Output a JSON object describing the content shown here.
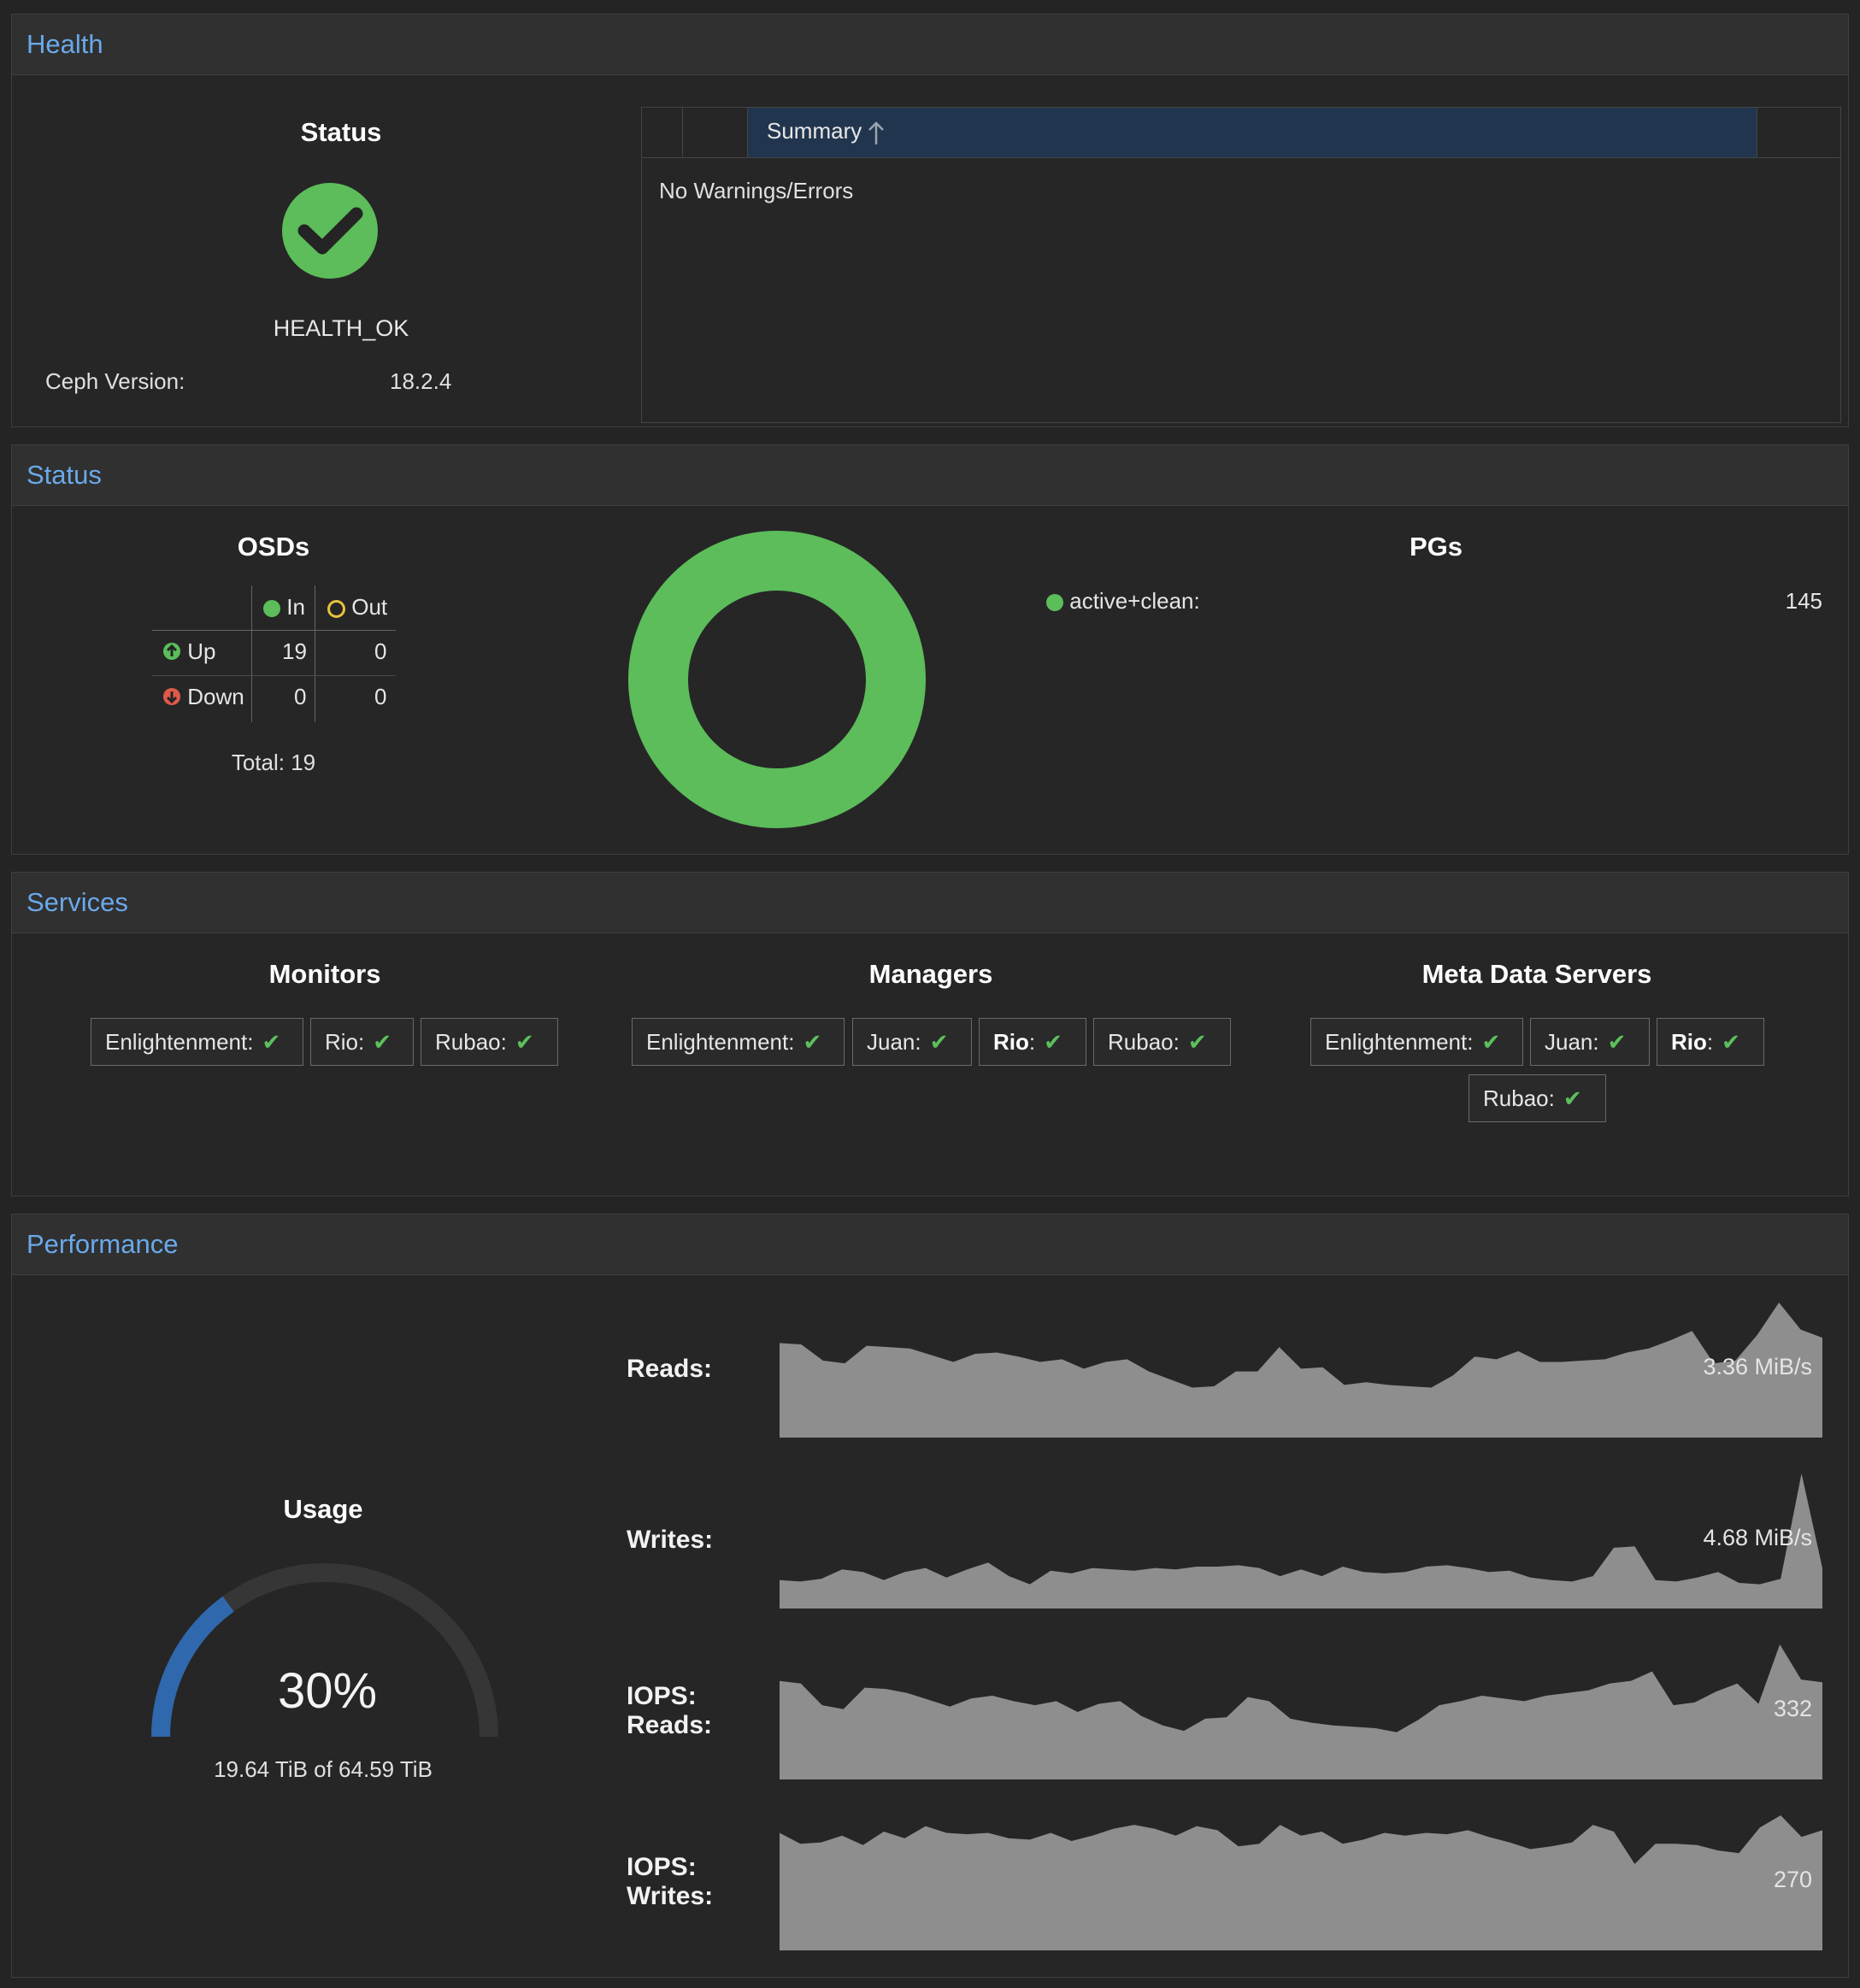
{
  "health": {
    "title": "Health",
    "status_heading": "Status",
    "status_text": "HEALTH_OK",
    "version_label": "Ceph Version:",
    "version_value": "18.2.4",
    "summary_header": "Summary",
    "summary_sort_icon": "arrow-up-icon",
    "summary_body": "No Warnings/Errors"
  },
  "status": {
    "title": "Status",
    "osds": {
      "heading": "OSDs",
      "col_in": "In",
      "col_out": "Out",
      "row_up": "Up",
      "row_down": "Down",
      "up_in": "19",
      "up_out": "0",
      "down_in": "0",
      "down_out": "0",
      "total": "Total: 19"
    },
    "pgs": {
      "heading": "PGs",
      "items": [
        {
          "label": "active+clean:",
          "value": "145",
          "color": "#5cbd5a"
        }
      ]
    }
  },
  "services": {
    "title": "Services",
    "monitors": {
      "heading": "Monitors",
      "items": [
        "Enlightenment:",
        "Rio:",
        "Rubao:"
      ]
    },
    "managers": {
      "heading": "Managers",
      "items": [
        "Enlightenment:",
        "Juan:",
        "Rio",
        "Rubao:"
      ],
      "rio_colon": ":"
    },
    "mds": {
      "heading": "Meta Data Servers",
      "items": [
        "Enlightenment:",
        "Juan:",
        "Rio",
        "Rubao:"
      ],
      "rio_colon": ":"
    }
  },
  "performance": {
    "title": "Performance",
    "usage": {
      "heading": "Usage",
      "percent_text": "30%",
      "percent": 30,
      "detail": "19.64 TiB of 64.59 TiB",
      "color": "#2f68ad"
    },
    "reads_label": "Reads:",
    "reads_value": "3.36 MiB/s",
    "writes_label": "Writes:",
    "writes_value": "4.68 MiB/s",
    "iops_reads_label_1": "IOPS:",
    "iops_reads_label_2": "Reads:",
    "iops_reads_value": "332",
    "iops_writes_label_1": "IOPS:",
    "iops_writes_label_2": "Writes:",
    "iops_writes_value": "270"
  },
  "chart_data": [
    {
      "type": "pie",
      "categories": [
        "active+clean"
      ],
      "values": [
        145
      ],
      "colors": [
        "#5cbd5a"
      ],
      "title": ""
    },
    {
      "type": "area",
      "series": [
        {
          "values": [
            0.7,
            0.69,
            0.57,
            0.55,
            0.68,
            0.67,
            0.66,
            0.61,
            0.56,
            0.62,
            0.63,
            0.6,
            0.56,
            0.58,
            0.51,
            0.56,
            0.58,
            0.49,
            0.43,
            0.37,
            0.38,
            0.49,
            0.49,
            0.67,
            0.51,
            0.52,
            0.39,
            0.41,
            0.39,
            0.38,
            0.37,
            0.46,
            0.6,
            0.58,
            0.64,
            0.56,
            0.56,
            0.57,
            0.58,
            0.63,
            0.66,
            0.72,
            0.79,
            0.55,
            0.57,
            0.76,
            1.0,
            0.8,
            0.74
          ]
        }
      ],
      "ylim": [
        0,
        1
      ]
    },
    {
      "type": "area",
      "series": [
        {
          "values": [
            0.21,
            0.2,
            0.22,
            0.29,
            0.27,
            0.21,
            0.27,
            0.3,
            0.23,
            0.29,
            0.34,
            0.24,
            0.18,
            0.28,
            0.26,
            0.3,
            0.29,
            0.28,
            0.3,
            0.29,
            0.31,
            0.31,
            0.32,
            0.3,
            0.24,
            0.29,
            0.24,
            0.31,
            0.27,
            0.26,
            0.27,
            0.31,
            0.32,
            0.3,
            0.27,
            0.28,
            0.23,
            0.21,
            0.2,
            0.24,
            0.45,
            0.46,
            0.21,
            0.2,
            0.23,
            0.27,
            0.19,
            0.18,
            0.22,
            1.0,
            0.3
          ]
        }
      ],
      "ylim": [
        0,
        1
      ]
    },
    {
      "type": "area",
      "series": [
        {
          "values": [
            0.73,
            0.71,
            0.55,
            0.52,
            0.68,
            0.67,
            0.64,
            0.59,
            0.54,
            0.6,
            0.62,
            0.58,
            0.55,
            0.58,
            0.5,
            0.56,
            0.58,
            0.47,
            0.4,
            0.36,
            0.45,
            0.46,
            0.61,
            0.58,
            0.45,
            0.42,
            0.4,
            0.39,
            0.38,
            0.35,
            0.44,
            0.55,
            0.58,
            0.62,
            0.6,
            0.58,
            0.62,
            0.64,
            0.66,
            0.71,
            0.73,
            0.8,
            0.55,
            0.57,
            0.65,
            0.71,
            0.56,
            1.0,
            0.74,
            0.72
          ]
        }
      ],
      "ylim": [
        0,
        1
      ]
    },
    {
      "type": "area",
      "series": [
        {
          "values": [
            0.87,
            0.79,
            0.8,
            0.85,
            0.78,
            0.88,
            0.83,
            0.92,
            0.87,
            0.86,
            0.87,
            0.83,
            0.82,
            0.87,
            0.81,
            0.85,
            0.9,
            0.93,
            0.9,
            0.85,
            0.92,
            0.89,
            0.77,
            0.79,
            0.93,
            0.85,
            0.88,
            0.79,
            0.82,
            0.87,
            0.85,
            0.87,
            0.86,
            0.89,
            0.84,
            0.8,
            0.75,
            0.77,
            0.8,
            0.93,
            0.88,
            0.64,
            0.79,
            0.79,
            0.78,
            0.74,
            0.72,
            0.91,
            1.0,
            0.84,
            0.89
          ]
        }
      ],
      "ylim": [
        0,
        1
      ]
    }
  ]
}
